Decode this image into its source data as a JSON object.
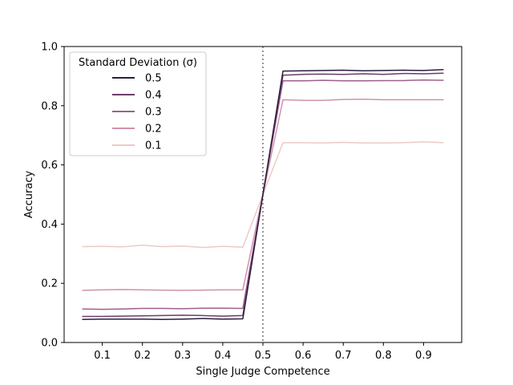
{
  "chart_data": {
    "type": "line",
    "xlabel": "Single Judge Competence",
    "ylabel": "Accuracy",
    "xlim": [
      0.005,
      0.995
    ],
    "ylim": [
      0.0,
      1.0
    ],
    "xticks": [
      0.1,
      0.2,
      0.3,
      0.4,
      0.5,
      0.6,
      0.7,
      0.8,
      0.9
    ],
    "xtick_labels": [
      "0.1",
      "0.2",
      "0.3",
      "0.4",
      "0.5",
      "0.6",
      "0.7",
      "0.8",
      "0.9"
    ],
    "yticks": [
      0.0,
      0.2,
      0.4,
      0.6,
      0.8,
      1.0
    ],
    "ytick_labels": [
      "0.0",
      "0.2",
      "0.4",
      "0.6",
      "0.8",
      "1.0"
    ],
    "grid": false,
    "reference_line": {
      "x": 0.5,
      "style": "dotted",
      "color": "#777777"
    },
    "legend": {
      "title": "Standard Deviation (σ)",
      "position": "top-left"
    },
    "x": [
      0.05,
      0.1,
      0.15,
      0.2,
      0.25,
      0.3,
      0.35,
      0.4,
      0.45,
      0.5,
      0.55,
      0.6,
      0.65,
      0.7,
      0.75,
      0.8,
      0.85,
      0.9,
      0.95
    ],
    "series": [
      {
        "name": "0.5",
        "color": "#2d1e3e",
        "values": [
          0.078,
          0.079,
          0.079,
          0.079,
          0.078,
          0.079,
          0.081,
          0.079,
          0.08,
          0.5,
          0.917,
          0.918,
          0.919,
          0.92,
          0.918,
          0.919,
          0.92,
          0.919,
          0.922
        ]
      },
      {
        "name": "0.4",
        "color": "#6b3e6b",
        "values": [
          0.088,
          0.088,
          0.089,
          0.09,
          0.091,
          0.092,
          0.091,
          0.089,
          0.091,
          0.5,
          0.903,
          0.906,
          0.907,
          0.906,
          0.908,
          0.906,
          0.909,
          0.908,
          0.91
        ]
      },
      {
        "name": "0.3",
        "color": "#a05f8c",
        "values": [
          0.113,
          0.112,
          0.113,
          0.115,
          0.115,
          0.114,
          0.116,
          0.116,
          0.115,
          0.5,
          0.884,
          0.884,
          0.886,
          0.884,
          0.884,
          0.885,
          0.885,
          0.887,
          0.886
        ]
      },
      {
        "name": "0.2",
        "color": "#cf93ad",
        "values": [
          0.176,
          0.178,
          0.179,
          0.178,
          0.177,
          0.176,
          0.177,
          0.178,
          0.178,
          0.5,
          0.82,
          0.818,
          0.818,
          0.821,
          0.822,
          0.82,
          0.82,
          0.82,
          0.82
        ]
      },
      {
        "name": "0.1",
        "color": "#ebcbc7",
        "values": [
          0.324,
          0.325,
          0.323,
          0.329,
          0.324,
          0.326,
          0.321,
          0.325,
          0.322,
          0.5,
          0.675,
          0.675,
          0.674,
          0.676,
          0.674,
          0.674,
          0.675,
          0.678,
          0.675
        ]
      }
    ]
  }
}
